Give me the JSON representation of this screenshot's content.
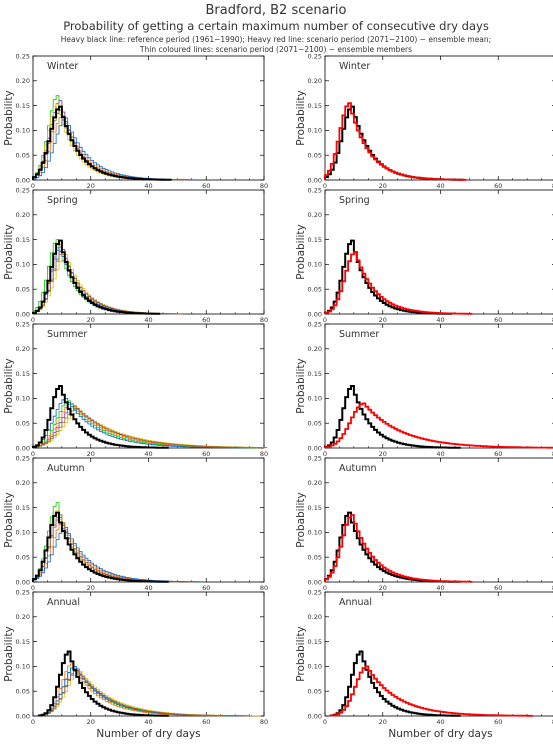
{
  "header": {
    "title": "Bradford, B2 scenario",
    "subtitle": "Probability of getting a certain maximum number of consecutive dry days",
    "note_line1": "Heavy black line: reference period (1961−1990); Heavy red line: scenario period (2071−2100) − ensemble mean;",
    "note_line2": "Thin coloured lines: scenario period (2071−2100) − ensemble members"
  },
  "axis": {
    "ylabel": "Probability",
    "xlabel": "Number of dry days",
    "xticks": [
      "0",
      "20",
      "40",
      "60",
      "80"
    ],
    "yticks": [
      "0.00",
      "0.05",
      "0.10",
      "0.15",
      "0.20",
      "0.25"
    ],
    "xlim": [
      0,
      80
    ],
    "ylim": [
      0,
      0.25
    ]
  },
  "colors": {
    "reference": "#000000",
    "ensemble_mean": "#ff0000",
    "members": [
      "#00cc00",
      "#7030a0",
      "#ff6600",
      "#e0c000",
      "#0066cc",
      "#996633"
    ]
  },
  "chart_data": [
    {
      "type": "line",
      "title": "Winter",
      "column": "left",
      "reference": {
        "peak_x": 9,
        "peak_y": 0.148,
        "rise": 5,
        "decay": 6.5
      },
      "members": [
        {
          "peak_x": 8,
          "peak_y": 0.17,
          "rise": 4.5,
          "decay": 6.8
        },
        {
          "peak_x": 9,
          "peak_y": 0.16,
          "rise": 5,
          "decay": 6.5
        },
        {
          "peak_x": 10,
          "peak_y": 0.13,
          "rise": 5.5,
          "decay": 7.5
        },
        {
          "peak_x": 8,
          "peak_y": 0.155,
          "rise": 4.5,
          "decay": 6.2
        },
        {
          "peak_x": 11,
          "peak_y": 0.125,
          "rise": 5.5,
          "decay": 7.8
        },
        {
          "peak_x": 9,
          "peak_y": 0.14,
          "rise": 5,
          "decay": 7
        }
      ]
    },
    {
      "type": "line",
      "title": "Winter",
      "column": "right",
      "reference": {
        "peak_x": 9,
        "peak_y": 0.148,
        "rise": 5,
        "decay": 6.5
      },
      "mean": {
        "peak_x": 8,
        "peak_y": 0.155,
        "rise": 4.8,
        "decay": 6.8
      }
    },
    {
      "type": "line",
      "title": "Spring",
      "column": "left",
      "reference": {
        "peak_x": 9,
        "peak_y": 0.148,
        "rise": 4.5,
        "decay": 5.8
      },
      "members": [
        {
          "peak_x": 8,
          "peak_y": 0.15,
          "rise": 4.5,
          "decay": 6
        },
        {
          "peak_x": 10,
          "peak_y": 0.13,
          "rise": 5,
          "decay": 6.8
        },
        {
          "peak_x": 9,
          "peak_y": 0.14,
          "rise": 4.5,
          "decay": 6.5
        },
        {
          "peak_x": 11,
          "peak_y": 0.12,
          "rise": 5.5,
          "decay": 7
        },
        {
          "peak_x": 9,
          "peak_y": 0.135,
          "rise": 4.5,
          "decay": 6.6
        },
        {
          "peak_x": 10,
          "peak_y": 0.125,
          "rise": 5,
          "decay": 7.2
        }
      ]
    },
    {
      "type": "line",
      "title": "Spring",
      "column": "right",
      "reference": {
        "peak_x": 9,
        "peak_y": 0.148,
        "rise": 4.5,
        "decay": 5.8
      },
      "mean": {
        "peak_x": 10,
        "peak_y": 0.125,
        "rise": 5,
        "decay": 7
      }
    },
    {
      "type": "line",
      "title": "Summer",
      "column": "left",
      "reference": {
        "peak_x": 9,
        "peak_y": 0.125,
        "rise": 4.5,
        "decay": 6.5
      },
      "members": [
        {
          "peak_x": 12,
          "peak_y": 0.095,
          "rise": 6,
          "decay": 12
        },
        {
          "peak_x": 14,
          "peak_y": 0.085,
          "rise": 7,
          "decay": 14
        },
        {
          "peak_x": 13,
          "peak_y": 0.09,
          "rise": 6.5,
          "decay": 13
        },
        {
          "peak_x": 16,
          "peak_y": 0.075,
          "rise": 8,
          "decay": 15
        },
        {
          "peak_x": 11,
          "peak_y": 0.1,
          "rise": 6,
          "decay": 11
        },
        {
          "peak_x": 15,
          "peak_y": 0.08,
          "rise": 7.5,
          "decay": 14
        }
      ]
    },
    {
      "type": "line",
      "title": "Summer",
      "column": "right",
      "reference": {
        "peak_x": 9,
        "peak_y": 0.125,
        "rise": 4.5,
        "decay": 6.5
      },
      "mean": {
        "peak_x": 13,
        "peak_y": 0.09,
        "rise": 6.5,
        "decay": 13
      }
    },
    {
      "type": "line",
      "title": "Autumn",
      "column": "left",
      "reference": {
        "peak_x": 8,
        "peak_y": 0.14,
        "rise": 4.5,
        "decay": 6.5
      },
      "members": [
        {
          "peak_x": 8,
          "peak_y": 0.16,
          "rise": 4.5,
          "decay": 6
        },
        {
          "peak_x": 9,
          "peak_y": 0.13,
          "rise": 5,
          "decay": 7.5
        },
        {
          "peak_x": 10,
          "peak_y": 0.12,
          "rise": 5.5,
          "decay": 8
        },
        {
          "peak_x": 8,
          "peak_y": 0.145,
          "rise": 4.5,
          "decay": 7
        },
        {
          "peak_x": 11,
          "peak_y": 0.11,
          "rise": 6,
          "decay": 8.5
        },
        {
          "peak_x": 9,
          "peak_y": 0.135,
          "rise": 5,
          "decay": 7.2
        }
      ]
    },
    {
      "type": "line",
      "title": "Autumn",
      "column": "right",
      "reference": {
        "peak_x": 8,
        "peak_y": 0.14,
        "rise": 4.5,
        "decay": 6.5
      },
      "mean": {
        "peak_x": 9,
        "peak_y": 0.135,
        "rise": 5,
        "decay": 7.2
      }
    },
    {
      "type": "line",
      "title": "Annual",
      "column": "left",
      "reference": {
        "peak_x": 12,
        "peak_y": 0.13,
        "rise": 4.5,
        "decay": 6
      },
      "members": [
        {
          "peak_x": 14,
          "peak_y": 0.1,
          "rise": 5.5,
          "decay": 10
        },
        {
          "peak_x": 15,
          "peak_y": 0.095,
          "rise": 6,
          "decay": 11
        },
        {
          "peak_x": 13,
          "peak_y": 0.105,
          "rise": 5,
          "decay": 9.5
        },
        {
          "peak_x": 16,
          "peak_y": 0.09,
          "rise": 6.5,
          "decay": 11.5
        },
        {
          "peak_x": 14,
          "peak_y": 0.1,
          "rise": 5.5,
          "decay": 10.5
        },
        {
          "peak_x": 15,
          "peak_y": 0.092,
          "rise": 6,
          "decay": 11
        }
      ]
    },
    {
      "type": "line",
      "title": "Annual",
      "column": "right",
      "reference": {
        "peak_x": 12,
        "peak_y": 0.13,
        "rise": 4.5,
        "decay": 6
      },
      "mean": {
        "peak_x": 14,
        "peak_y": 0.1,
        "rise": 5.5,
        "decay": 10.5
      }
    }
  ]
}
